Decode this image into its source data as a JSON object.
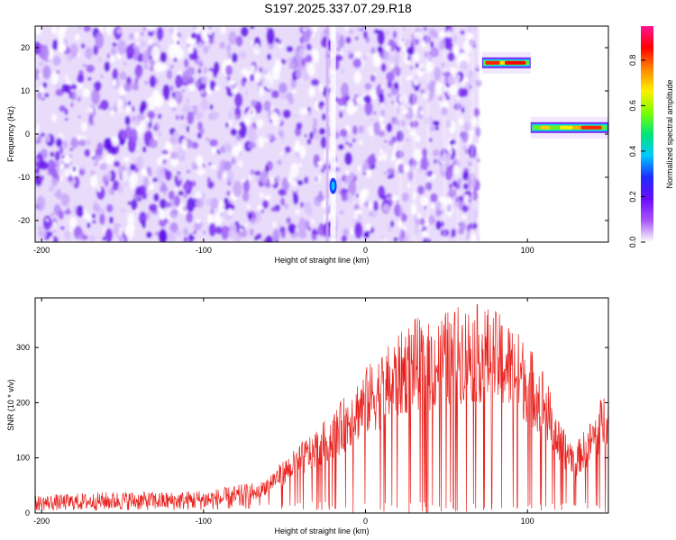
{
  "chart_data": [
    {
      "type": "heatmap",
      "title": "S197.2025.337.07.29.R18",
      "xlabel": "Height of straight line (km)",
      "ylabel": "Frequency (Hz)",
      "xlim": [
        -204,
        150
      ],
      "ylim": [
        -25,
        25
      ],
      "x_ticks": [
        -200,
        -100,
        0,
        100
      ],
      "y_ticks": [
        -20,
        -10,
        0,
        10,
        20
      ],
      "colorbar": {
        "label": "Normalized spectral amplitude",
        "range": [
          0,
          0.95
        ],
        "ticks": [
          "0.0",
          "0.2",
          "0.4",
          "0.6",
          "0.8"
        ],
        "colors": [
          "#ffffff",
          "#a855f7",
          "#6a0dfc",
          "#1e2bff",
          "#00c8ff",
          "#00e676",
          "#7dff00",
          "#ffee00",
          "#ff8800",
          "#ff0000",
          "#ff1493"
        ]
      },
      "features": [
        {
          "name": "broadband noise",
          "x_range": [
            -204,
            70
          ],
          "y_range": [
            -25,
            25
          ],
          "amplitude": 0.15
        },
        {
          "name": "vertical streak",
          "x": -20,
          "y_range": [
            -25,
            25
          ],
          "amplitude": 0.2
        },
        {
          "name": "blob",
          "x": -20,
          "y": -12,
          "amplitude": 0.3
        },
        {
          "name": "tone band upper",
          "x_range": [
            72,
            102
          ],
          "y": 16.5,
          "amplitude": 0.9
        },
        {
          "name": "tone band lower",
          "x_range": [
            102,
            150
          ],
          "y": 1.5,
          "amplitude": 0.8
        }
      ]
    },
    {
      "type": "line",
      "xlabel": "Height of straight line (km)",
      "ylabel": "SNR (10 * v/v)",
      "xlim": [
        -204,
        150
      ],
      "ylim": [
        0,
        390
      ],
      "x_ticks": [
        -200,
        -100,
        0,
        100
      ],
      "y_ticks": [
        0,
        100,
        200,
        300
      ],
      "series": [
        {
          "name": "SNR",
          "color": "#e8211d",
          "x": [
            -204,
            -180,
            -150,
            -120,
            -90,
            -70,
            -60,
            -40,
            -20,
            0,
            20,
            30,
            40,
            50,
            60,
            70,
            80,
            90,
            100,
            110,
            120,
            130,
            140,
            150
          ],
          "y": [
            20,
            22,
            25,
            24,
            28,
            35,
            60,
            110,
            160,
            230,
            280,
            310,
            300,
            320,
            330,
            330,
            320,
            300,
            270,
            230,
            140,
            110,
            150,
            210
          ]
        }
      ]
    }
  ]
}
